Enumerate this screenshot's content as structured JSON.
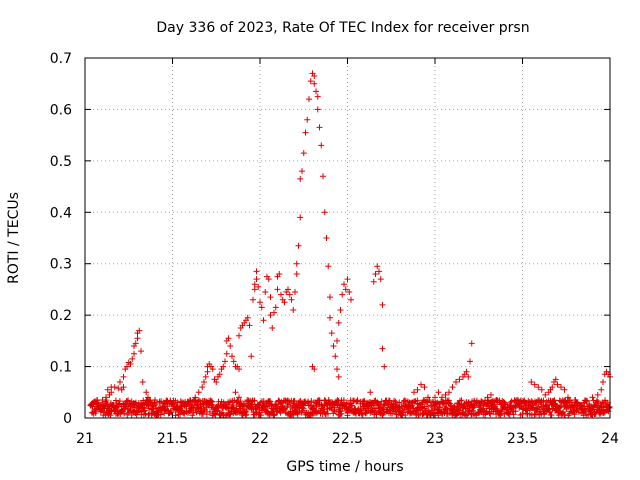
{
  "chart_data": {
    "type": "scatter",
    "title": "Day 336 of 2023, Rate Of TEC Index for receiver prsn",
    "xlabel": "GPS time / hours",
    "ylabel": "ROTI / TECUs",
    "xlim": [
      21,
      24
    ],
    "ylim": [
      0,
      0.7
    ],
    "xticks": [
      "21",
      "21.5",
      "22",
      "22.5",
      "23",
      "23.5",
      "24"
    ],
    "yticks": [
      "0",
      "0.1",
      "0.2",
      "0.3",
      "0.4",
      "0.5",
      "0.6",
      "0.7"
    ],
    "grid": true,
    "marker": "+",
    "color": "#e00000",
    "baseline_band": {
      "x_start": 21.03,
      "x_end": 24.0,
      "y_min": 0.005,
      "y_max": 0.035
    },
    "series": [
      {
        "points": [
          [
            21.05,
            0.03
          ],
          [
            21.07,
            0.035
          ],
          [
            21.1,
            0.035
          ],
          [
            21.12,
            0.04
          ],
          [
            21.14,
            0.045
          ],
          [
            21.15,
            0.05
          ],
          [
            21.13,
            0.055
          ],
          [
            21.15,
            0.06
          ],
          [
            21.17,
            0.06
          ],
          [
            21.19,
            0.058
          ],
          [
            21.21,
            0.055
          ],
          [
            21.22,
            0.06
          ],
          [
            21.2,
            0.07
          ],
          [
            21.22,
            0.08
          ],
          [
            21.23,
            0.095
          ],
          [
            21.24,
            0.1
          ],
          [
            21.25,
            0.108
          ],
          [
            21.26,
            0.105
          ],
          [
            21.27,
            0.115
          ],
          [
            21.28,
            0.125
          ],
          [
            21.28,
            0.14
          ],
          [
            21.29,
            0.145
          ],
          [
            21.3,
            0.155
          ],
          [
            21.3,
            0.165
          ],
          [
            21.31,
            0.17
          ],
          [
            21.32,
            0.13
          ],
          [
            21.33,
            0.07
          ],
          [
            21.35,
            0.05
          ],
          [
            21.36,
            0.04
          ],
          [
            21.4,
            0.035
          ],
          [
            21.45,
            0.03
          ],
          [
            21.55,
            0.03
          ],
          [
            21.6,
            0.035
          ],
          [
            21.63,
            0.04
          ],
          [
            21.65,
            0.05
          ],
          [
            21.67,
            0.06
          ],
          [
            21.68,
            0.07
          ],
          [
            21.69,
            0.08
          ],
          [
            21.7,
            0.09
          ],
          [
            21.7,
            0.1
          ],
          [
            21.71,
            0.105
          ],
          [
            21.72,
            0.1
          ],
          [
            21.73,
            0.095
          ],
          [
            21.74,
            0.075
          ],
          [
            21.75,
            0.07
          ],
          [
            21.76,
            0.08
          ],
          [
            21.77,
            0.085
          ],
          [
            21.78,
            0.095
          ],
          [
            21.79,
            0.1
          ],
          [
            21.8,
            0.11
          ],
          [
            21.81,
            0.125
          ],
          [
            21.81,
            0.15
          ],
          [
            21.82,
            0.155
          ],
          [
            21.83,
            0.14
          ],
          [
            21.84,
            0.12
          ],
          [
            21.85,
            0.11
          ],
          [
            21.86,
            0.1
          ],
          [
            21.87,
            0.1
          ],
          [
            21.88,
            0.095
          ],
          [
            21.86,
            0.05
          ],
          [
            21.88,
            0.04
          ],
          [
            21.88,
            0.16
          ],
          [
            21.89,
            0.175
          ],
          [
            21.9,
            0.18
          ],
          [
            21.91,
            0.185
          ],
          [
            21.92,
            0.19
          ],
          [
            21.93,
            0.195
          ],
          [
            21.94,
            0.18
          ],
          [
            21.95,
            0.12
          ],
          [
            21.96,
            0.23
          ],
          [
            21.97,
            0.25
          ],
          [
            21.97,
            0.26
          ],
          [
            21.98,
            0.27
          ],
          [
            21.98,
            0.285
          ],
          [
            21.99,
            0.255
          ],
          [
            22.0,
            0.225
          ],
          [
            22.01,
            0.215
          ],
          [
            22.02,
            0.19
          ],
          [
            22.03,
            0.245
          ],
          [
            22.04,
            0.275
          ],
          [
            22.05,
            0.27
          ],
          [
            22.06,
            0.235
          ],
          [
            22.06,
            0.2
          ],
          [
            22.07,
            0.175
          ],
          [
            22.08,
            0.205
          ],
          [
            22.09,
            0.215
          ],
          [
            22.1,
            0.25
          ],
          [
            22.1,
            0.275
          ],
          [
            22.11,
            0.28
          ],
          [
            22.12,
            0.24
          ],
          [
            22.13,
            0.23
          ],
          [
            22.14,
            0.225
          ],
          [
            22.15,
            0.245
          ],
          [
            22.16,
            0.25
          ],
          [
            22.17,
            0.24
          ],
          [
            22.18,
            0.23
          ],
          [
            22.19,
            0.21
          ],
          [
            22.2,
            0.245
          ],
          [
            22.21,
            0.28
          ],
          [
            22.21,
            0.3
          ],
          [
            22.22,
            0.335
          ],
          [
            22.23,
            0.39
          ],
          [
            22.23,
            0.465
          ],
          [
            22.24,
            0.48
          ],
          [
            22.25,
            0.515
          ],
          [
            22.26,
            0.555
          ],
          [
            22.27,
            0.58
          ],
          [
            22.28,
            0.62
          ],
          [
            22.29,
            0.655
          ],
          [
            22.3,
            0.67
          ],
          [
            22.31,
            0.665
          ],
          [
            22.31,
            0.65
          ],
          [
            22.32,
            0.635
          ],
          [
            22.33,
            0.625
          ],
          [
            22.33,
            0.6
          ],
          [
            22.34,
            0.565
          ],
          [
            22.35,
            0.53
          ],
          [
            22.36,
            0.47
          ],
          [
            22.37,
            0.4
          ],
          [
            22.38,
            0.35
          ],
          [
            22.39,
            0.295
          ],
          [
            22.4,
            0.235
          ],
          [
            22.4,
            0.195
          ],
          [
            22.41,
            0.165
          ],
          [
            22.42,
            0.14
          ],
          [
            22.43,
            0.12
          ],
          [
            22.44,
            0.095
          ],
          [
            22.45,
            0.08
          ],
          [
            22.44,
            0.15
          ],
          [
            22.45,
            0.185
          ],
          [
            22.46,
            0.21
          ],
          [
            22.47,
            0.24
          ],
          [
            22.48,
            0.26
          ],
          [
            22.49,
            0.25
          ],
          [
            22.5,
            0.27
          ],
          [
            22.51,
            0.245
          ],
          [
            22.52,
            0.23
          ],
          [
            22.3,
            0.1
          ],
          [
            22.31,
            0.095
          ],
          [
            22.65,
            0.265
          ],
          [
            22.66,
            0.28
          ],
          [
            22.67,
            0.295
          ],
          [
            22.68,
            0.285
          ],
          [
            22.69,
            0.27
          ],
          [
            22.7,
            0.22
          ],
          [
            22.7,
            0.135
          ],
          [
            22.71,
            0.1
          ],
          [
            22.63,
            0.05
          ],
          [
            22.88,
            0.05
          ],
          [
            22.9,
            0.055
          ],
          [
            22.92,
            0.065
          ],
          [
            22.94,
            0.06
          ],
          [
            22.96,
            0.04
          ],
          [
            23.0,
            0.04
          ],
          [
            23.02,
            0.05
          ],
          [
            23.04,
            0.04
          ],
          [
            23.06,
            0.045
          ],
          [
            23.08,
            0.05
          ],
          [
            23.1,
            0.06
          ],
          [
            23.12,
            0.07
          ],
          [
            23.14,
            0.075
          ],
          [
            23.16,
            0.08
          ],
          [
            23.17,
            0.085
          ],
          [
            23.18,
            0.09
          ],
          [
            23.19,
            0.08
          ],
          [
            23.2,
            0.11
          ],
          [
            23.21,
            0.145
          ],
          [
            23.25,
            0.03
          ],
          [
            23.3,
            0.04
          ],
          [
            23.32,
            0.045
          ],
          [
            23.35,
            0.035
          ],
          [
            23.55,
            0.07
          ],
          [
            23.57,
            0.065
          ],
          [
            23.59,
            0.06
          ],
          [
            23.61,
            0.055
          ],
          [
            23.63,
            0.045
          ],
          [
            23.65,
            0.05
          ],
          [
            23.66,
            0.055
          ],
          [
            23.67,
            0.06
          ],
          [
            23.68,
            0.07
          ],
          [
            23.69,
            0.075
          ],
          [
            23.7,
            0.065
          ],
          [
            23.72,
            0.06
          ],
          [
            23.74,
            0.055
          ],
          [
            23.76,
            0.04
          ],
          [
            23.8,
            0.035
          ],
          [
            23.85,
            0.03
          ],
          [
            23.9,
            0.04
          ],
          [
            23.93,
            0.045
          ],
          [
            23.95,
            0.055
          ],
          [
            23.96,
            0.07
          ],
          [
            23.97,
            0.085
          ],
          [
            23.98,
            0.09
          ],
          [
            23.99,
            0.085
          ],
          [
            24.0,
            0.08
          ]
        ]
      }
    ]
  }
}
